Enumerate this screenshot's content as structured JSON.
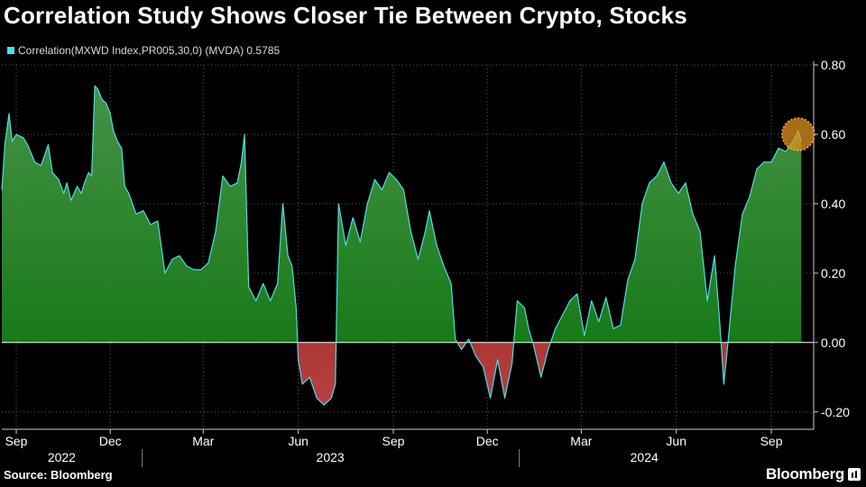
{
  "header": {
    "title": "Correlation Study Shows Closer Tie Between Crypto, Stocks"
  },
  "legend": {
    "label": "Correlation(MXWD Index,PR005,30,0) (MVDA) 0.5785",
    "color": "#48e0e8"
  },
  "footer": {
    "source": "Source: Bloomberg",
    "brand": "Bloomberg"
  },
  "chart_data": {
    "type": "area",
    "ylim": [
      -0.25,
      0.8
    ],
    "yticks": [
      0.8,
      0.6,
      0.4,
      0.2,
      0.0,
      -0.2
    ],
    "ytick_labels": [
      "0.80",
      "0.60",
      "0.40",
      "0.20",
      "0.00",
      "-0.20"
    ],
    "xlim": [
      "2022-08-18",
      "2024-10-12"
    ],
    "month_ticks": [
      {
        "date": "2022-09-01",
        "label": "Sep"
      },
      {
        "date": "2022-12-01",
        "label": "Dec"
      },
      {
        "date": "2023-03-01",
        "label": "Mar"
      },
      {
        "date": "2023-06-01",
        "label": "Jun"
      },
      {
        "date": "2023-09-01",
        "label": "Sep"
      },
      {
        "date": "2023-12-01",
        "label": "Dec"
      },
      {
        "date": "2024-03-01",
        "label": "Mar"
      },
      {
        "date": "2024-06-01",
        "label": "Jun"
      },
      {
        "date": "2024-09-01",
        "label": "Sep"
      }
    ],
    "year_labels": [
      {
        "year": "2022",
        "center": "2022-10-15"
      },
      {
        "year": "2023",
        "center": "2023-07-02"
      },
      {
        "year": "2024",
        "center": "2024-05-01"
      }
    ],
    "year_dividers": [
      "2023-01-01",
      "2024-01-01"
    ],
    "grid": true,
    "colors": {
      "line": "#48e0e8",
      "positive_fill": "#1d8a1d",
      "negative_fill": "#8a1a1a",
      "highlight": "#e09020"
    },
    "highlight_point": {
      "date": "2024-09-27",
      "value": 0.6
    },
    "series": [
      {
        "name": "Correlation(MXWD Index,PR005,30,0) (MVDA)",
        "points": [
          [
            "2022-08-18",
            0.44
          ],
          [
            "2022-08-21",
            0.57
          ],
          [
            "2022-08-25",
            0.66
          ],
          [
            "2022-08-28",
            0.58
          ],
          [
            "2022-09-01",
            0.6
          ],
          [
            "2022-09-08",
            0.59
          ],
          [
            "2022-09-12",
            0.57
          ],
          [
            "2022-09-19",
            0.52
          ],
          [
            "2022-09-25",
            0.51
          ],
          [
            "2022-10-02",
            0.57
          ],
          [
            "2022-10-06",
            0.49
          ],
          [
            "2022-10-12",
            0.47
          ],
          [
            "2022-10-17",
            0.43
          ],
          [
            "2022-10-20",
            0.46
          ],
          [
            "2022-10-24",
            0.41
          ],
          [
            "2022-10-30",
            0.45
          ],
          [
            "2022-11-03",
            0.43
          ],
          [
            "2022-11-06",
            0.46
          ],
          [
            "2022-11-10",
            0.49
          ],
          [
            "2022-11-13",
            0.48
          ],
          [
            "2022-11-16",
            0.74
          ],
          [
            "2022-11-19",
            0.73
          ],
          [
            "2022-11-23",
            0.7
          ],
          [
            "2022-11-27",
            0.69
          ],
          [
            "2022-12-01",
            0.66
          ],
          [
            "2022-12-04",
            0.61
          ],
          [
            "2022-12-08",
            0.58
          ],
          [
            "2022-12-12",
            0.56
          ],
          [
            "2022-12-15",
            0.45
          ],
          [
            "2022-12-19",
            0.43
          ],
          [
            "2022-12-26",
            0.37
          ],
          [
            "2023-01-02",
            0.38
          ],
          [
            "2023-01-09",
            0.34
          ],
          [
            "2023-01-16",
            0.35
          ],
          [
            "2023-01-23",
            0.2
          ],
          [
            "2023-01-30",
            0.24
          ],
          [
            "2023-02-06",
            0.25
          ],
          [
            "2023-02-13",
            0.22
          ],
          [
            "2023-02-20",
            0.21
          ],
          [
            "2023-02-27",
            0.21
          ],
          [
            "2023-03-06",
            0.23
          ],
          [
            "2023-03-13",
            0.32
          ],
          [
            "2023-03-20",
            0.48
          ],
          [
            "2023-03-27",
            0.45
          ],
          [
            "2023-04-03",
            0.46
          ],
          [
            "2023-04-07",
            0.52
          ],
          [
            "2023-04-10",
            0.6
          ],
          [
            "2023-04-14",
            0.16
          ],
          [
            "2023-04-21",
            0.12
          ],
          [
            "2023-04-28",
            0.17
          ],
          [
            "2023-05-05",
            0.12
          ],
          [
            "2023-05-12",
            0.17
          ],
          [
            "2023-05-17",
            0.4
          ],
          [
            "2023-05-22",
            0.25
          ],
          [
            "2023-05-26",
            0.22
          ],
          [
            "2023-05-30",
            0.1
          ],
          [
            "2023-06-01",
            -0.05
          ],
          [
            "2023-06-05",
            -0.12
          ],
          [
            "2023-06-12",
            -0.1
          ],
          [
            "2023-06-19",
            -0.16
          ],
          [
            "2023-06-26",
            -0.18
          ],
          [
            "2023-07-03",
            -0.16
          ],
          [
            "2023-07-07",
            -0.12
          ],
          [
            "2023-07-10",
            0.4
          ],
          [
            "2023-07-17",
            0.28
          ],
          [
            "2023-07-24",
            0.36
          ],
          [
            "2023-07-31",
            0.29
          ],
          [
            "2023-08-07",
            0.4
          ],
          [
            "2023-08-14",
            0.47
          ],
          [
            "2023-08-21",
            0.44
          ],
          [
            "2023-08-28",
            0.49
          ],
          [
            "2023-09-04",
            0.47
          ],
          [
            "2023-09-11",
            0.44
          ],
          [
            "2023-09-18",
            0.32
          ],
          [
            "2023-09-25",
            0.24
          ],
          [
            "2023-10-02",
            0.32
          ],
          [
            "2023-10-06",
            0.38
          ],
          [
            "2023-10-13",
            0.28
          ],
          [
            "2023-10-20",
            0.22
          ],
          [
            "2023-10-27",
            0.17
          ],
          [
            "2023-10-31",
            0.01
          ],
          [
            "2023-11-06",
            -0.02
          ],
          [
            "2023-11-13",
            0.01
          ],
          [
            "2023-11-20",
            -0.04
          ],
          [
            "2023-11-27",
            -0.07
          ],
          [
            "2023-12-04",
            -0.16
          ],
          [
            "2023-12-11",
            -0.05
          ],
          [
            "2023-12-18",
            -0.16
          ],
          [
            "2023-12-25",
            -0.06
          ],
          [
            "2023-12-30",
            0.12
          ],
          [
            "2024-01-06",
            0.1
          ],
          [
            "2024-01-10",
            0.04
          ],
          [
            "2024-01-15",
            -0.01
          ],
          [
            "2024-01-22",
            -0.1
          ],
          [
            "2024-01-29",
            -0.02
          ],
          [
            "2024-02-05",
            0.04
          ],
          [
            "2024-02-12",
            0.08
          ],
          [
            "2024-02-19",
            0.12
          ],
          [
            "2024-02-26",
            0.14
          ],
          [
            "2024-03-04",
            0.02
          ],
          [
            "2024-03-11",
            0.12
          ],
          [
            "2024-03-18",
            0.06
          ],
          [
            "2024-03-25",
            0.13
          ],
          [
            "2024-04-01",
            0.04
          ],
          [
            "2024-04-08",
            0.05
          ],
          [
            "2024-04-15",
            0.18
          ],
          [
            "2024-04-22",
            0.24
          ],
          [
            "2024-04-29",
            0.4
          ],
          [
            "2024-05-06",
            0.46
          ],
          [
            "2024-05-13",
            0.48
          ],
          [
            "2024-05-20",
            0.52
          ],
          [
            "2024-05-27",
            0.46
          ],
          [
            "2024-06-03",
            0.43
          ],
          [
            "2024-06-10",
            0.46
          ],
          [
            "2024-06-17",
            0.37
          ],
          [
            "2024-06-24",
            0.32
          ],
          [
            "2024-07-01",
            0.12
          ],
          [
            "2024-07-08",
            0.25
          ],
          [
            "2024-07-13",
            0.06
          ],
          [
            "2024-07-17",
            -0.12
          ],
          [
            "2024-07-21",
            0.0
          ],
          [
            "2024-07-28",
            0.22
          ],
          [
            "2024-08-04",
            0.37
          ],
          [
            "2024-08-11",
            0.42
          ],
          [
            "2024-08-18",
            0.5
          ],
          [
            "2024-08-25",
            0.52
          ],
          [
            "2024-09-01",
            0.52
          ],
          [
            "2024-09-08",
            0.56
          ],
          [
            "2024-09-15",
            0.55
          ],
          [
            "2024-09-22",
            0.58
          ],
          [
            "2024-09-27",
            0.61
          ],
          [
            "2024-09-30",
            0.5785
          ]
        ]
      }
    ]
  }
}
